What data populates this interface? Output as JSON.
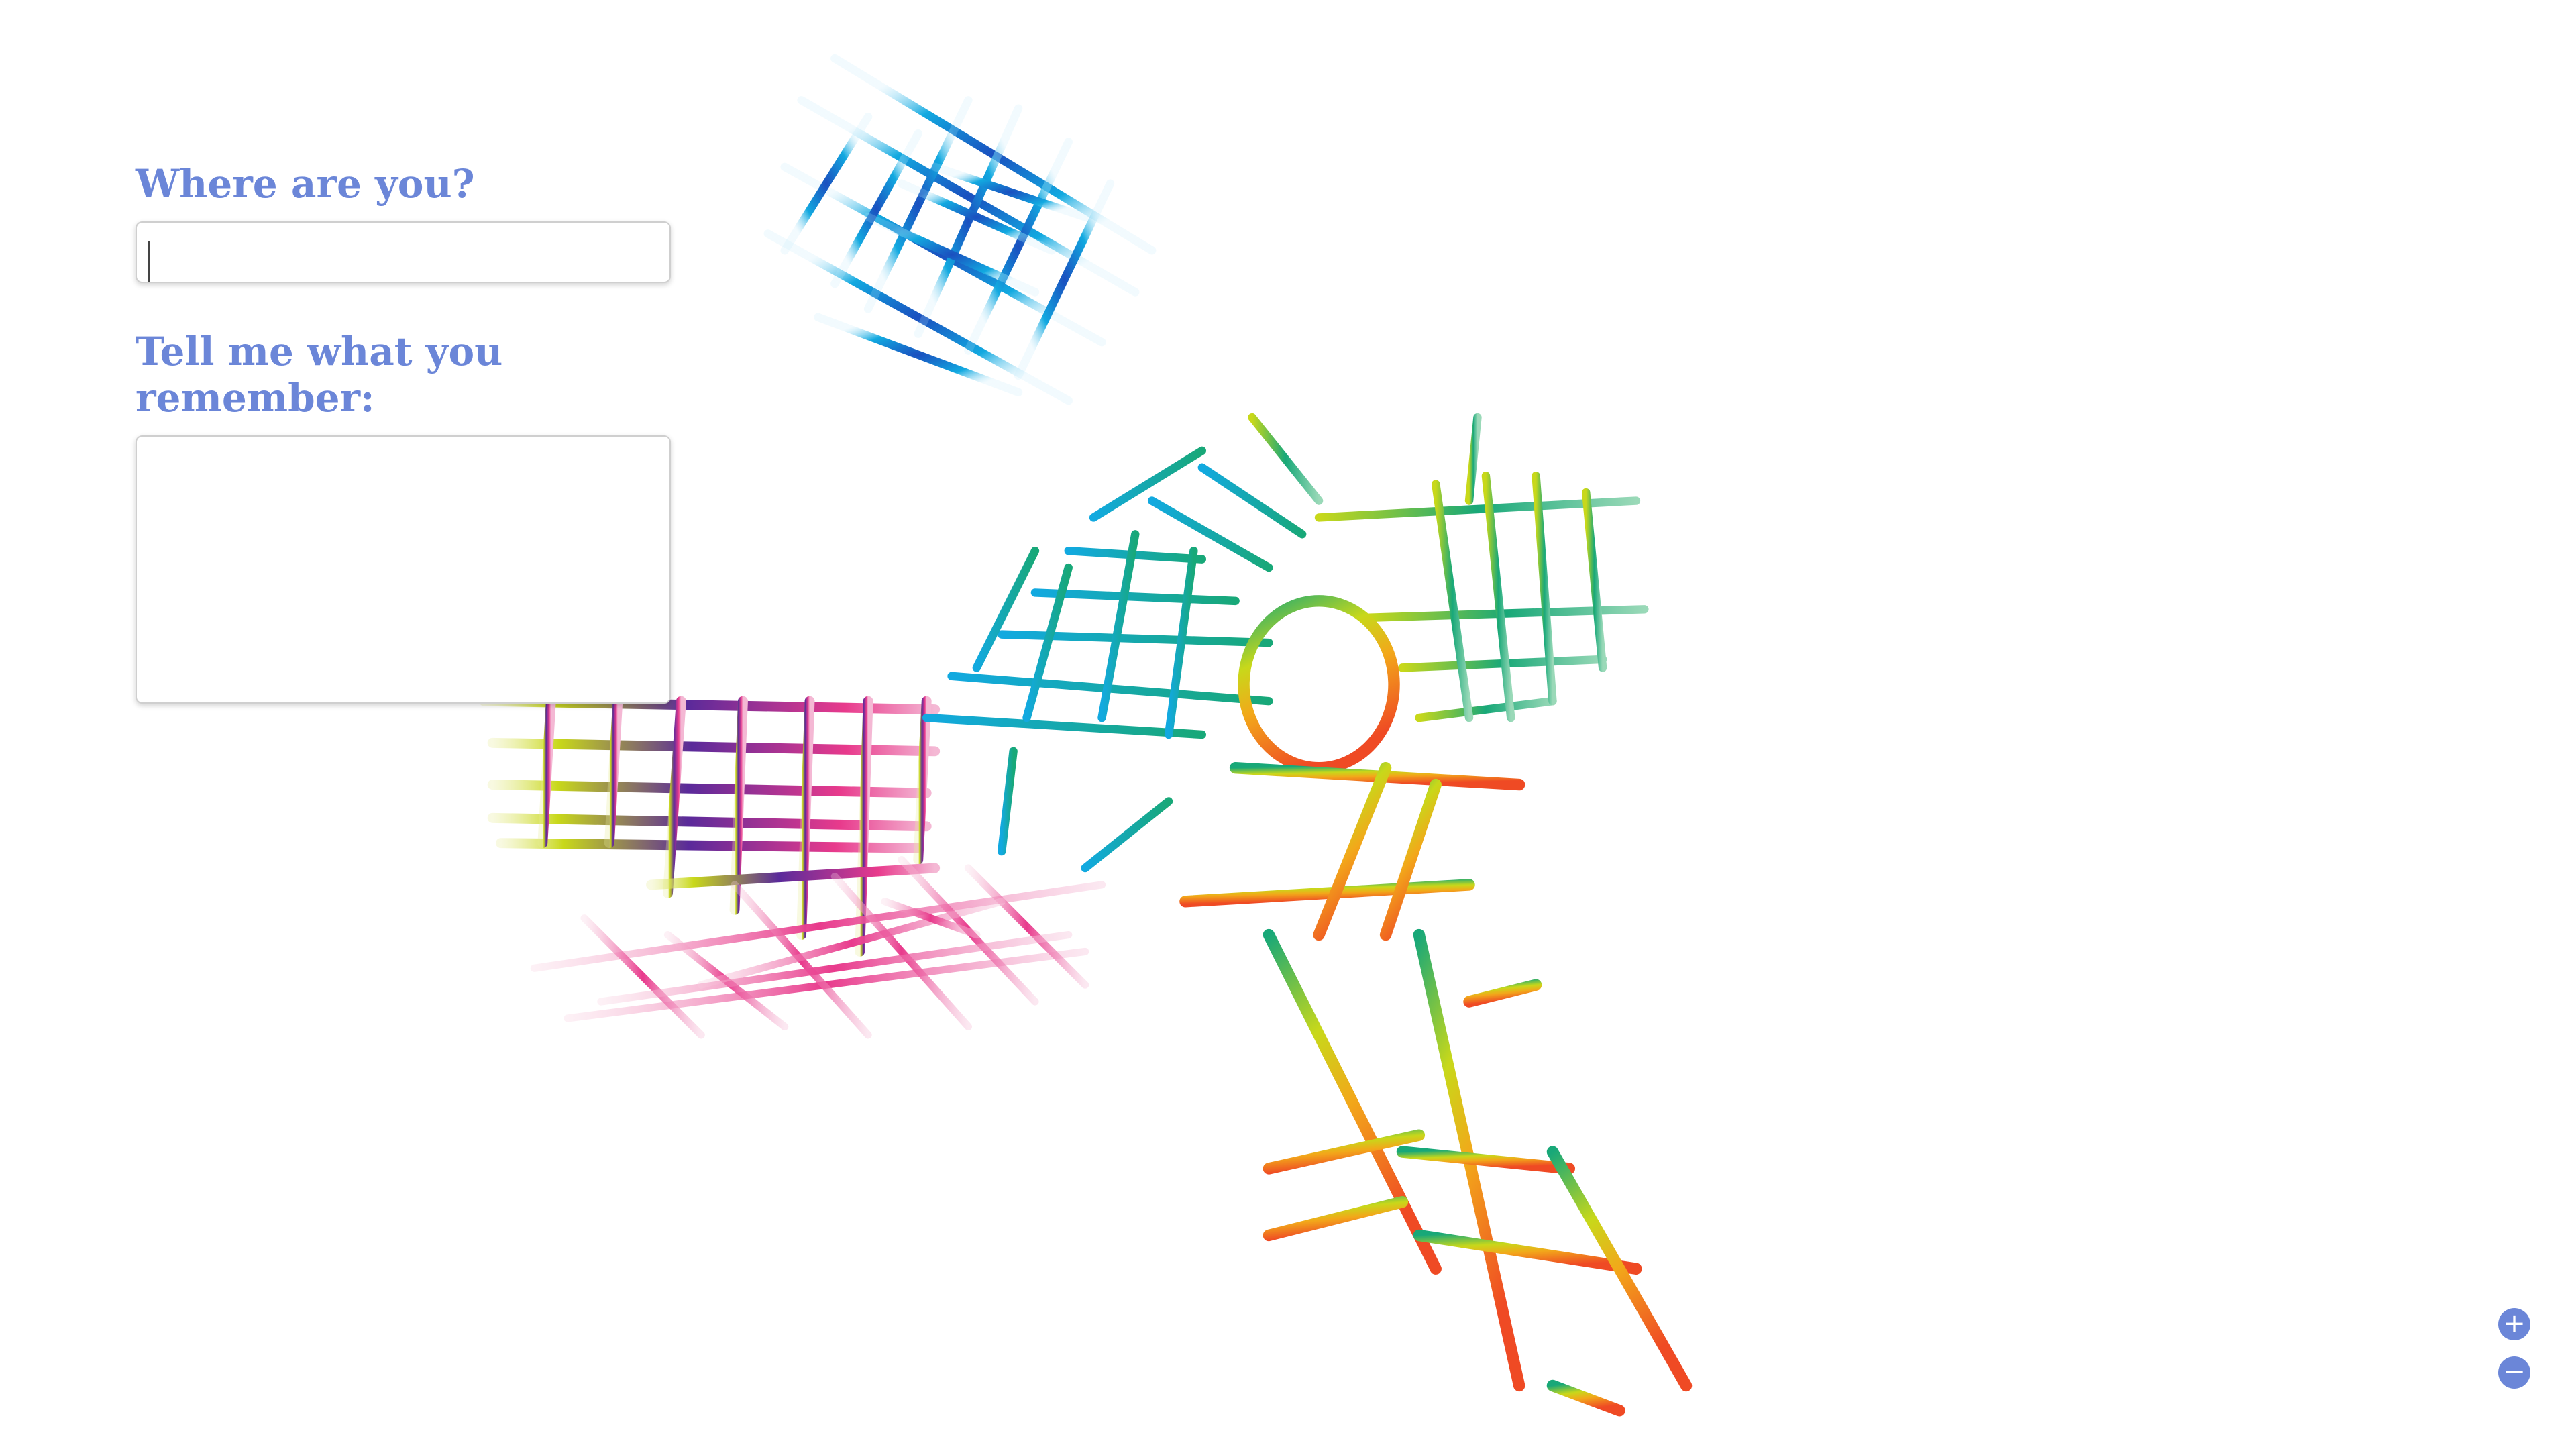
{
  "form": {
    "location_label": "Where are you?",
    "location_value": "",
    "memory_label": "Tell me what you remember:",
    "memory_value": ""
  },
  "zoom": {
    "in_label": "+",
    "out_label": "−"
  },
  "colors": {
    "accent": "#6b86d8",
    "street_palette": [
      "#1a4fbf",
      "#12a9e0",
      "#18a878",
      "#c8d81a",
      "#f2a81a",
      "#ef4a24",
      "#e83a8c",
      "#5a2a9a"
    ]
  },
  "icons": {
    "zoom_in": "plus-icon",
    "zoom_out": "minus-icon"
  }
}
